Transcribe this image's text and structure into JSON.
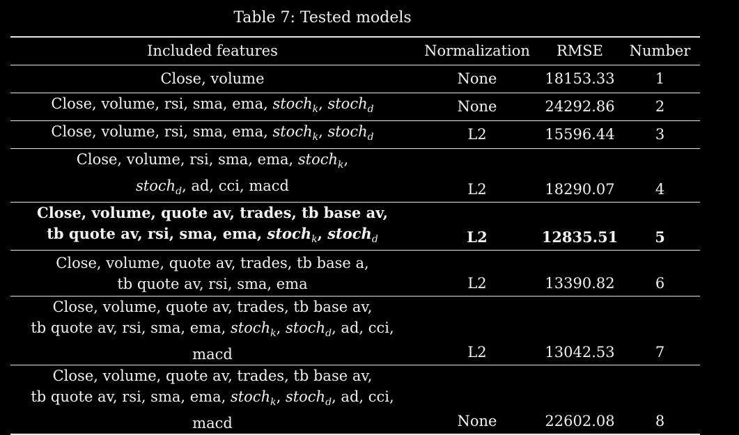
{
  "caption": "Table 7: Tested models",
  "headers": {
    "features": "Included features",
    "normalization": "Normalization",
    "rmse": "RMSE",
    "number": "Number"
  },
  "math": {
    "stoch": "stoch",
    "k": "k",
    "d": "d"
  },
  "rows": [
    {
      "features_a": "Close, volume",
      "normalization": "None",
      "rmse": "18153.33",
      "number": "1"
    },
    {
      "features_a": "Close, volume, rsi, sma, ema, ",
      "sep": ", ",
      "normalization": "None",
      "rmse": "24292.86",
      "number": "2"
    },
    {
      "features_a": "Close, volume, rsi, sma, ema, ",
      "sep": ", ",
      "normalization": "L2",
      "rmse": "15596.44",
      "number": "3"
    },
    {
      "line1": "Close, volume, rsi, sma, ema, ",
      "line1_end": ",",
      "line2_tail": ", ad, cci, macd",
      "normalization": "L2",
      "rmse": "18290.07",
      "number": "4"
    },
    {
      "line1": "Close, volume, quote av, trades, tb base av,",
      "line2": "tb quote av, rsi, sma, ema, ",
      "sep": ", ",
      "normalization": "L2",
      "rmse": "12835.51",
      "number": "5"
    },
    {
      "line1": "Close, volume, quote av, trades, tb base a,",
      "line2": "tb quote av, rsi, sma, ema",
      "normalization": "L2",
      "rmse": "13390.82",
      "number": "6"
    },
    {
      "line1": "Close, volume, quote av, trades, tb base av,",
      "line2": "tb quote av, rsi, sma, ema, ",
      "sep": ", ",
      "line2_tail": ", ad, cci, macd",
      "normalization": "L2",
      "rmse": "13042.53",
      "number": "7"
    },
    {
      "line1": "Close, volume, quote av, trades, tb base av,",
      "line2": "tb quote av, rsi, sma, ema, ",
      "sep": ", ",
      "line2_tail": ", ad, cci, macd",
      "normalization": "None",
      "rmse": "22602.08",
      "number": "8"
    }
  ]
}
